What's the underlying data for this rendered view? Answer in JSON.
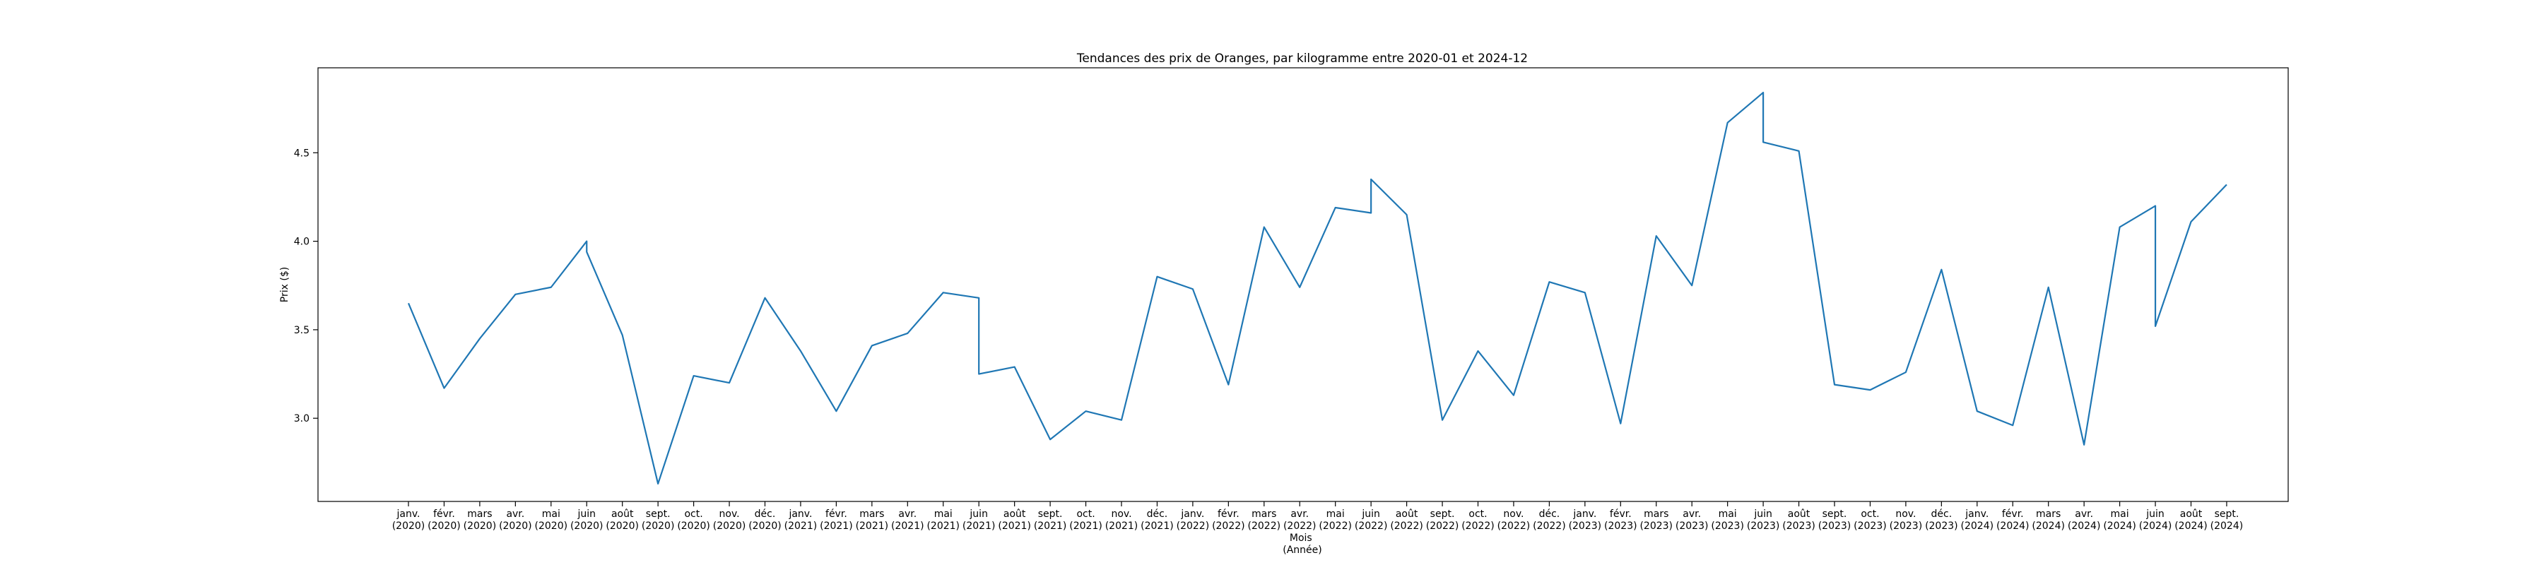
{
  "chart_data": {
    "type": "line",
    "title": "Tendances des prix de Oranges, par kilogramme entre 2020-01 et 2024-12",
    "xlabel": "Mois\n(Année)",
    "ylabel": "Prix ($)",
    "ylim": [
      2.53,
      4.98
    ],
    "yticks": [
      3.0,
      3.5,
      4.0,
      4.5
    ],
    "ytick_labels": [
      "3.0",
      "3.5",
      "4.0",
      "4.5"
    ],
    "grid": false,
    "legend": "none",
    "line_color": "#1f77b4",
    "x_categories": [
      {
        "month": "janv.",
        "year": "(2020)"
      },
      {
        "month": "févr.",
        "year": "(2020)"
      },
      {
        "month": "mars",
        "year": "(2020)"
      },
      {
        "month": "avr.",
        "year": "(2020)"
      },
      {
        "month": "mai",
        "year": "(2020)"
      },
      {
        "month": "juin",
        "year": "(2020)"
      },
      {
        "month": "août",
        "year": "(2020)"
      },
      {
        "month": "sept.",
        "year": "(2020)"
      },
      {
        "month": "oct.",
        "year": "(2020)"
      },
      {
        "month": "nov.",
        "year": "(2020)"
      },
      {
        "month": "déc.",
        "year": "(2020)"
      },
      {
        "month": "janv.",
        "year": "(2021)"
      },
      {
        "month": "févr.",
        "year": "(2021)"
      },
      {
        "month": "mars",
        "year": "(2021)"
      },
      {
        "month": "avr.",
        "year": "(2021)"
      },
      {
        "month": "mai",
        "year": "(2021)"
      },
      {
        "month": "juin",
        "year": "(2021)"
      },
      {
        "month": "août",
        "year": "(2021)"
      },
      {
        "month": "sept.",
        "year": "(2021)"
      },
      {
        "month": "oct.",
        "year": "(2021)"
      },
      {
        "month": "nov.",
        "year": "(2021)"
      },
      {
        "month": "déc.",
        "year": "(2021)"
      },
      {
        "month": "janv.",
        "year": "(2022)"
      },
      {
        "month": "févr.",
        "year": "(2022)"
      },
      {
        "month": "mars",
        "year": "(2022)"
      },
      {
        "month": "avr.",
        "year": "(2022)"
      },
      {
        "month": "mai",
        "year": "(2022)"
      },
      {
        "month": "juin",
        "year": "(2022)"
      },
      {
        "month": "août",
        "year": "(2022)"
      },
      {
        "month": "sept.",
        "year": "(2022)"
      },
      {
        "month": "oct.",
        "year": "(2022)"
      },
      {
        "month": "nov.",
        "year": "(2022)"
      },
      {
        "month": "déc.",
        "year": "(2022)"
      },
      {
        "month": "janv.",
        "year": "(2023)"
      },
      {
        "month": "févr.",
        "year": "(2023)"
      },
      {
        "month": "mars",
        "year": "(2023)"
      },
      {
        "month": "avr.",
        "year": "(2023)"
      },
      {
        "month": "mai",
        "year": "(2023)"
      },
      {
        "month": "juin",
        "year": "(2023)"
      },
      {
        "month": "août",
        "year": "(2023)"
      },
      {
        "month": "sept.",
        "year": "(2023)"
      },
      {
        "month": "oct.",
        "year": "(2023)"
      },
      {
        "month": "nov.",
        "year": "(2023)"
      },
      {
        "month": "déc.",
        "year": "(2023)"
      },
      {
        "month": "janv.",
        "year": "(2024)"
      },
      {
        "month": "févr.",
        "year": "(2024)"
      },
      {
        "month": "mars",
        "year": "(2024)"
      },
      {
        "month": "avr.",
        "year": "(2024)"
      },
      {
        "month": "mai",
        "year": "(2024)"
      },
      {
        "month": "juin",
        "year": "(2024)"
      },
      {
        "month": "août",
        "year": "(2024)"
      },
      {
        "month": "sept.",
        "year": "(2024)"
      }
    ],
    "points": [
      {
        "cat": 0,
        "y": 3.65
      },
      {
        "cat": 1,
        "y": 3.17
      },
      {
        "cat": 2,
        "y": 3.45
      },
      {
        "cat": 3,
        "y": 3.7
      },
      {
        "cat": 4,
        "y": 3.74
      },
      {
        "cat": 5,
        "y": 4.0
      },
      {
        "cat": 5,
        "y": 3.94
      },
      {
        "cat": 6,
        "y": 3.47
      },
      {
        "cat": 7,
        "y": 2.63
      },
      {
        "cat": 8,
        "y": 3.24
      },
      {
        "cat": 9,
        "y": 3.2
      },
      {
        "cat": 10,
        "y": 3.68
      },
      {
        "cat": 11,
        "y": 3.38
      },
      {
        "cat": 12,
        "y": 3.04
      },
      {
        "cat": 13,
        "y": 3.41
      },
      {
        "cat": 14,
        "y": 3.48
      },
      {
        "cat": 15,
        "y": 3.71
      },
      {
        "cat": 16,
        "y": 3.68
      },
      {
        "cat": 16,
        "y": 3.25
      },
      {
        "cat": 17,
        "y": 3.29
      },
      {
        "cat": 18,
        "y": 2.88
      },
      {
        "cat": 19,
        "y": 3.04
      },
      {
        "cat": 20,
        "y": 2.99
      },
      {
        "cat": 21,
        "y": 3.8
      },
      {
        "cat": 22,
        "y": 3.73
      },
      {
        "cat": 23,
        "y": 3.19
      },
      {
        "cat": 24,
        "y": 4.08
      },
      {
        "cat": 25,
        "y": 3.74
      },
      {
        "cat": 26,
        "y": 4.19
      },
      {
        "cat": 27,
        "y": 4.16
      },
      {
        "cat": 27,
        "y": 4.35
      },
      {
        "cat": 28,
        "y": 4.15
      },
      {
        "cat": 29,
        "y": 2.99
      },
      {
        "cat": 30,
        "y": 3.38
      },
      {
        "cat": 31,
        "y": 3.13
      },
      {
        "cat": 32,
        "y": 3.77
      },
      {
        "cat": 33,
        "y": 3.71
      },
      {
        "cat": 34,
        "y": 2.97
      },
      {
        "cat": 35,
        "y": 4.03
      },
      {
        "cat": 36,
        "y": 3.75
      },
      {
        "cat": 37,
        "y": 4.67
      },
      {
        "cat": 38,
        "y": 4.84
      },
      {
        "cat": 38,
        "y": 4.56
      },
      {
        "cat": 39,
        "y": 4.51
      },
      {
        "cat": 40,
        "y": 3.19
      },
      {
        "cat": 41,
        "y": 3.16
      },
      {
        "cat": 42,
        "y": 3.26
      },
      {
        "cat": 43,
        "y": 3.84
      },
      {
        "cat": 44,
        "y": 3.04
      },
      {
        "cat": 45,
        "y": 2.96
      },
      {
        "cat": 46,
        "y": 3.74
      },
      {
        "cat": 47,
        "y": 2.85
      },
      {
        "cat": 48,
        "y": 4.08
      },
      {
        "cat": 49,
        "y": 4.2
      },
      {
        "cat": 49,
        "y": 3.52
      },
      {
        "cat": 50,
        "y": 4.11
      },
      {
        "cat": 51,
        "y": 4.32
      }
    ]
  }
}
